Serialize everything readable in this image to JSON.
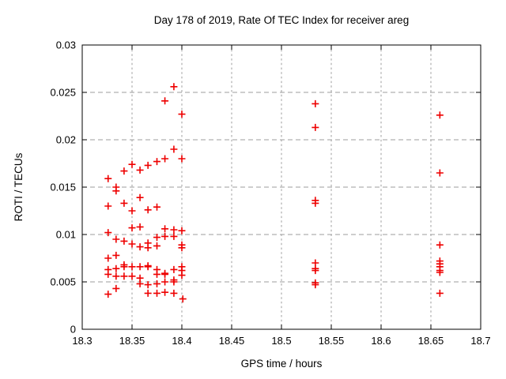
{
  "window": {
    "background": "#ffffff"
  },
  "chart_data": {
    "type": "scatter",
    "title": "Day 178 of 2019, Rate Of TEC Index for receiver areg",
    "xlabel": "GPS time / hours",
    "ylabel": "ROTI / TECUs",
    "xlim": [
      18.3,
      18.7
    ],
    "ylim": [
      0,
      0.03
    ],
    "grid": true,
    "legend": "none",
    "x_ticks": {
      "values": [
        18.3,
        18.35,
        18.4,
        18.45,
        18.5,
        18.55,
        18.6,
        18.65,
        18.7
      ],
      "labels": [
        "18.3",
        "18.35",
        "18.4",
        "18.45",
        "18.5",
        "18.55",
        "18.6",
        "18.65",
        "18.7"
      ]
    },
    "y_ticks": {
      "values": [
        0,
        0.005,
        0.01,
        0.015,
        0.02,
        0.025,
        0.03
      ],
      "labels": [
        "0",
        "0.005",
        "0.01",
        "0.015",
        "0.02",
        "0.025",
        "0.03"
      ]
    },
    "marker": {
      "shape": "plus",
      "color": "#ee0000",
      "size": 9
    },
    "series": [
      {
        "name": "ROTI",
        "points": [
          [
            18.326,
            0.0159
          ],
          [
            18.326,
            0.013
          ],
          [
            18.326,
            0.0102
          ],
          [
            18.326,
            0.0075
          ],
          [
            18.326,
            0.0063
          ],
          [
            18.326,
            0.0058
          ],
          [
            18.326,
            0.0037
          ],
          [
            18.334,
            0.015
          ],
          [
            18.334,
            0.0146
          ],
          [
            18.334,
            0.0095
          ],
          [
            18.334,
            0.0078
          ],
          [
            18.334,
            0.0064
          ],
          [
            18.334,
            0.0056
          ],
          [
            18.334,
            0.0043
          ],
          [
            18.342,
            0.0167
          ],
          [
            18.342,
            0.0133
          ],
          [
            18.342,
            0.0093
          ],
          [
            18.342,
            0.0068
          ],
          [
            18.342,
            0.0066
          ],
          [
            18.342,
            0.0056
          ],
          [
            18.35,
            0.0174
          ],
          [
            18.35,
            0.0125
          ],
          [
            18.35,
            0.0107
          ],
          [
            18.35,
            0.009
          ],
          [
            18.35,
            0.0066
          ],
          [
            18.35,
            0.0056
          ],
          [
            18.358,
            0.0168
          ],
          [
            18.358,
            0.0139
          ],
          [
            18.358,
            0.0108
          ],
          [
            18.358,
            0.0087
          ],
          [
            18.358,
            0.0066
          ],
          [
            18.358,
            0.0054
          ],
          [
            18.358,
            0.0048
          ],
          [
            18.366,
            0.0173
          ],
          [
            18.366,
            0.0126
          ],
          [
            18.366,
            0.0091
          ],
          [
            18.366,
            0.0086
          ],
          [
            18.366,
            0.0067
          ],
          [
            18.366,
            0.0066
          ],
          [
            18.366,
            0.0047
          ],
          [
            18.366,
            0.0038
          ],
          [
            18.375,
            0.0177
          ],
          [
            18.375,
            0.0129
          ],
          [
            18.375,
            0.0097
          ],
          [
            18.375,
            0.0088
          ],
          [
            18.375,
            0.0063
          ],
          [
            18.375,
            0.0058
          ],
          [
            18.375,
            0.0048
          ],
          [
            18.375,
            0.0038
          ],
          [
            18.383,
            0.0241
          ],
          [
            18.383,
            0.018
          ],
          [
            18.383,
            0.0106
          ],
          [
            18.383,
            0.0098
          ],
          [
            18.383,
            0.0059
          ],
          [
            18.383,
            0.0058
          ],
          [
            18.383,
            0.005
          ],
          [
            18.383,
            0.0039
          ],
          [
            18.392,
            0.0256
          ],
          [
            18.392,
            0.019
          ],
          [
            18.392,
            0.0105
          ],
          [
            18.392,
            0.0098
          ],
          [
            18.392,
            0.0063
          ],
          [
            18.392,
            0.0052
          ],
          [
            18.392,
            0.005
          ],
          [
            18.392,
            0.0038
          ],
          [
            18.4,
            0.0227
          ],
          [
            18.4,
            0.018
          ],
          [
            18.4,
            0.0104
          ],
          [
            18.4,
            0.0089
          ],
          [
            18.4,
            0.0086
          ],
          [
            18.4,
            0.0066
          ],
          [
            18.4,
            0.0062
          ],
          [
            18.4,
            0.0057
          ],
          [
            18.401,
            0.0032
          ],
          [
            18.534,
            0.0238
          ],
          [
            18.534,
            0.0213
          ],
          [
            18.534,
            0.0136
          ],
          [
            18.534,
            0.0133
          ],
          [
            18.534,
            0.007
          ],
          [
            18.534,
            0.0064
          ],
          [
            18.534,
            0.0062
          ],
          [
            18.534,
            0.0049
          ],
          [
            18.534,
            0.0047
          ],
          [
            18.659,
            0.0226
          ],
          [
            18.659,
            0.0165
          ],
          [
            18.659,
            0.0089
          ],
          [
            18.659,
            0.0072
          ],
          [
            18.659,
            0.0069
          ],
          [
            18.659,
            0.0066
          ],
          [
            18.659,
            0.0062
          ],
          [
            18.659,
            0.006
          ],
          [
            18.659,
            0.0038
          ]
        ]
      }
    ],
    "colors": {
      "marker": "#ee0000",
      "grid": "#9e9e9e",
      "border": "#000000",
      "text": "#000000",
      "background": "#ffffff"
    }
  }
}
